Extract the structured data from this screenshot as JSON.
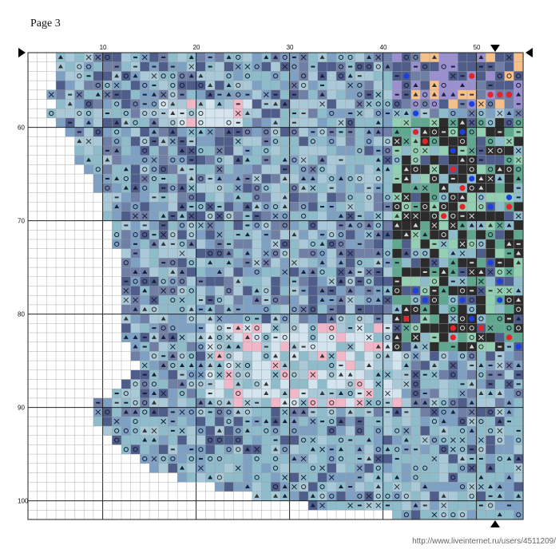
{
  "page": {
    "title": "Page 3",
    "watermark": "http://www.liveinternet.ru/users/4511209/"
  },
  "grid": {
    "cols": 53,
    "rows": 50,
    "col_start": 2,
    "row_start": 52,
    "top_numbers": [
      "10",
      "20",
      "30",
      "40",
      "50"
    ],
    "left_numbers": [
      "60",
      "70",
      "80",
      "90",
      "100"
    ]
  },
  "palette": {
    "navy": "#4e5d8a",
    "slate": "#6f7fa6",
    "blue": "#7ea0c2",
    "teal": "#8ebccb",
    "light": "#a9c9d8",
    "pale": "#d3e4ee",
    "pink": "#f1b7c9",
    "mint": "#93cfb2",
    "green": "#5fa88f",
    "dark": "#2b2b2b",
    "peach": "#f5c08a",
    "violet": "#9a8fcf",
    "red": "#e3242b",
    "bluedot": "#1d3fe0"
  }
}
